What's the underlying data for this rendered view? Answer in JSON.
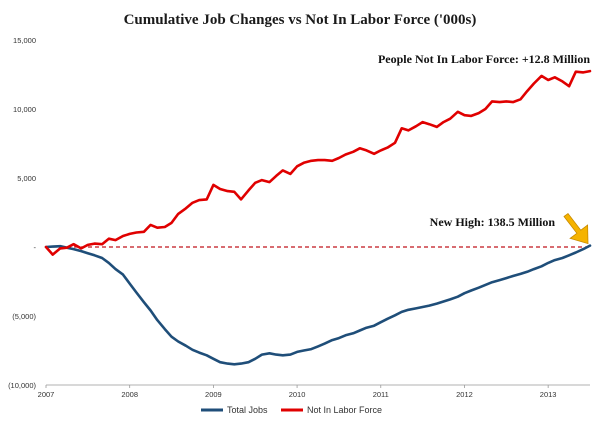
{
  "chart_data": {
    "type": "line",
    "title": "Cumulative Job Changes vs Not In Labor Force  ('000s)",
    "xlabel": "",
    "ylabel": "",
    "x_ticks": [
      "2007",
      "2008",
      "2009",
      "2010",
      "2011",
      "2012",
      "2013"
    ],
    "y_ticks": [
      "15,000",
      "10,000",
      "5,000",
      "-",
      "(5,000)",
      "(10,000)"
    ],
    "y_tick_values": [
      15000,
      10000,
      5000,
      0,
      -5000,
      -10000
    ],
    "xlim": [
      2007.0,
      2013.5
    ],
    "ylim": [
      -10000,
      15000
    ],
    "grid": false,
    "legend_position": "bottom",
    "reference_line": {
      "y": 0,
      "style": "dashed",
      "color": "#c0141c"
    },
    "annotations": [
      {
        "text": "People Not In Labor Force: +12.8 Million",
        "series": "Not In Labor Force"
      },
      {
        "text": "New High: 138.5 Million",
        "series": "Total Jobs"
      }
    ],
    "series": [
      {
        "name": "Total Jobs",
        "color": "#1f4e79",
        "points": [
          [
            2007.0,
            0
          ],
          [
            2007.08,
            30
          ],
          [
            2007.17,
            60
          ],
          [
            2007.25,
            -50
          ],
          [
            2007.33,
            -150
          ],
          [
            2007.42,
            -300
          ],
          [
            2007.5,
            -450
          ],
          [
            2007.58,
            -600
          ],
          [
            2007.67,
            -800
          ],
          [
            2007.75,
            -1150
          ],
          [
            2007.83,
            -1600
          ],
          [
            2007.92,
            -2000
          ],
          [
            2008.0,
            -2650
          ],
          [
            2008.08,
            -3300
          ],
          [
            2008.17,
            -4000
          ],
          [
            2008.25,
            -4600
          ],
          [
            2008.33,
            -5300
          ],
          [
            2008.42,
            -5950
          ],
          [
            2008.5,
            -6500
          ],
          [
            2008.58,
            -6850
          ],
          [
            2008.67,
            -7150
          ],
          [
            2008.75,
            -7450
          ],
          [
            2008.83,
            -7650
          ],
          [
            2008.92,
            -7850
          ],
          [
            2009.0,
            -8100
          ],
          [
            2009.08,
            -8350
          ],
          [
            2009.17,
            -8450
          ],
          [
            2009.25,
            -8500
          ],
          [
            2009.33,
            -8450
          ],
          [
            2009.42,
            -8350
          ],
          [
            2009.5,
            -8100
          ],
          [
            2009.58,
            -7800
          ],
          [
            2009.67,
            -7700
          ],
          [
            2009.75,
            -7800
          ],
          [
            2009.83,
            -7850
          ],
          [
            2009.92,
            -7800
          ],
          [
            2010.0,
            -7600
          ],
          [
            2010.08,
            -7500
          ],
          [
            2010.17,
            -7400
          ],
          [
            2010.25,
            -7200
          ],
          [
            2010.33,
            -7000
          ],
          [
            2010.42,
            -6750
          ],
          [
            2010.5,
            -6600
          ],
          [
            2010.58,
            -6400
          ],
          [
            2010.67,
            -6250
          ],
          [
            2010.75,
            -6050
          ],
          [
            2010.83,
            -5850
          ],
          [
            2010.92,
            -5700
          ],
          [
            2011.0,
            -5450
          ],
          [
            2011.08,
            -5200
          ],
          [
            2011.17,
            -4950
          ],
          [
            2011.25,
            -4700
          ],
          [
            2011.33,
            -4550
          ],
          [
            2011.42,
            -4450
          ],
          [
            2011.5,
            -4350
          ],
          [
            2011.58,
            -4250
          ],
          [
            2011.67,
            -4100
          ],
          [
            2011.75,
            -3950
          ],
          [
            2011.83,
            -3800
          ],
          [
            2011.92,
            -3600
          ],
          [
            2012.0,
            -3350
          ],
          [
            2012.08,
            -3150
          ],
          [
            2012.17,
            -2950
          ],
          [
            2012.25,
            -2750
          ],
          [
            2012.33,
            -2550
          ],
          [
            2012.42,
            -2400
          ],
          [
            2012.5,
            -2250
          ],
          [
            2012.58,
            -2100
          ],
          [
            2012.67,
            -1950
          ],
          [
            2012.75,
            -1800
          ],
          [
            2012.83,
            -1600
          ],
          [
            2012.92,
            -1400
          ],
          [
            2013.0,
            -1150
          ],
          [
            2013.08,
            -950
          ],
          [
            2013.17,
            -800
          ],
          [
            2013.25,
            -600
          ],
          [
            2013.33,
            -400
          ],
          [
            2013.42,
            -150
          ],
          [
            2013.5,
            100
          ]
        ]
      },
      {
        "name": "Not In Labor Force",
        "color": "#e00000",
        "points": [
          [
            2007.0,
            0
          ],
          [
            2007.08,
            -550
          ],
          [
            2007.17,
            -100
          ],
          [
            2007.25,
            -50
          ],
          [
            2007.33,
            200
          ],
          [
            2007.42,
            -100
          ],
          [
            2007.5,
            150
          ],
          [
            2007.58,
            250
          ],
          [
            2007.67,
            200
          ],
          [
            2007.75,
            600
          ],
          [
            2007.83,
            500
          ],
          [
            2007.92,
            800
          ],
          [
            2008.0,
            950
          ],
          [
            2008.08,
            1050
          ],
          [
            2008.17,
            1100
          ],
          [
            2008.25,
            1600
          ],
          [
            2008.33,
            1400
          ],
          [
            2008.42,
            1450
          ],
          [
            2008.5,
            1750
          ],
          [
            2008.58,
            2400
          ],
          [
            2008.67,
            2800
          ],
          [
            2008.75,
            3200
          ],
          [
            2008.83,
            3400
          ],
          [
            2008.92,
            3450
          ],
          [
            2009.0,
            4500
          ],
          [
            2009.08,
            4200
          ],
          [
            2009.17,
            4050
          ],
          [
            2009.25,
            4000
          ],
          [
            2009.33,
            3450
          ],
          [
            2009.42,
            4100
          ],
          [
            2009.5,
            4650
          ],
          [
            2009.58,
            4850
          ],
          [
            2009.67,
            4700
          ],
          [
            2009.75,
            5150
          ],
          [
            2009.83,
            5550
          ],
          [
            2009.92,
            5300
          ],
          [
            2010.0,
            5850
          ],
          [
            2010.08,
            6100
          ],
          [
            2010.17,
            6250
          ],
          [
            2010.25,
            6300
          ],
          [
            2010.33,
            6300
          ],
          [
            2010.42,
            6250
          ],
          [
            2010.5,
            6450
          ],
          [
            2010.58,
            6700
          ],
          [
            2010.67,
            6900
          ],
          [
            2010.75,
            7150
          ],
          [
            2010.83,
            7000
          ],
          [
            2010.92,
            6750
          ],
          [
            2011.0,
            7000
          ],
          [
            2011.08,
            7200
          ],
          [
            2011.17,
            7550
          ],
          [
            2011.25,
            8600
          ],
          [
            2011.33,
            8450
          ],
          [
            2011.42,
            8750
          ],
          [
            2011.5,
            9050
          ],
          [
            2011.58,
            8900
          ],
          [
            2011.67,
            8700
          ],
          [
            2011.75,
            9050
          ],
          [
            2011.83,
            9300
          ],
          [
            2011.92,
            9800
          ],
          [
            2012.0,
            9550
          ],
          [
            2012.08,
            9500
          ],
          [
            2012.17,
            9700
          ],
          [
            2012.25,
            10000
          ],
          [
            2012.33,
            10550
          ],
          [
            2012.42,
            10500
          ],
          [
            2012.5,
            10550
          ],
          [
            2012.58,
            10500
          ],
          [
            2012.67,
            10700
          ],
          [
            2012.75,
            11300
          ],
          [
            2012.83,
            11850
          ],
          [
            2012.92,
            12400
          ],
          [
            2013.0,
            12100
          ],
          [
            2013.08,
            12300
          ],
          [
            2013.17,
            12000
          ],
          [
            2013.25,
            11650
          ],
          [
            2013.33,
            12700
          ],
          [
            2013.42,
            12650
          ],
          [
            2013.5,
            12750
          ]
        ]
      }
    ]
  }
}
